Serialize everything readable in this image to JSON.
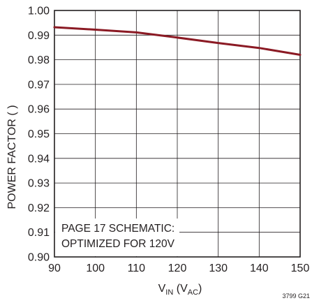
{
  "chart_data": {
    "type": "line",
    "title": "",
    "xlabel": {
      "main": "V",
      "sub_in": "IN",
      "open": " (V",
      "sub_ac": "AC",
      "close": ")"
    },
    "ylabel": "POWER FACTOR ( )",
    "xlim": [
      90,
      150
    ],
    "ylim": [
      0.9,
      1.0
    ],
    "xticks": [
      "90",
      "100",
      "110",
      "120",
      "130",
      "140",
      "150"
    ],
    "yticks": [
      "0.90",
      "0.91",
      "0.92",
      "0.93",
      "0.94",
      "0.95",
      "0.96",
      "0.97",
      "0.98",
      "0.99",
      "1.00"
    ],
    "grid": true,
    "series": [
      {
        "x": [
          90,
          100,
          110,
          120,
          130,
          140,
          150
        ],
        "y": [
          0.9932,
          0.9922,
          0.9911,
          0.989,
          0.9868,
          0.9848,
          0.982
        ],
        "color": "#8b1a24"
      }
    ],
    "annotation": [
      "PAGE 17 SCHEMATIC:",
      "OPTIMIZED FOR 120V"
    ],
    "figure_id": "3799 G21"
  }
}
